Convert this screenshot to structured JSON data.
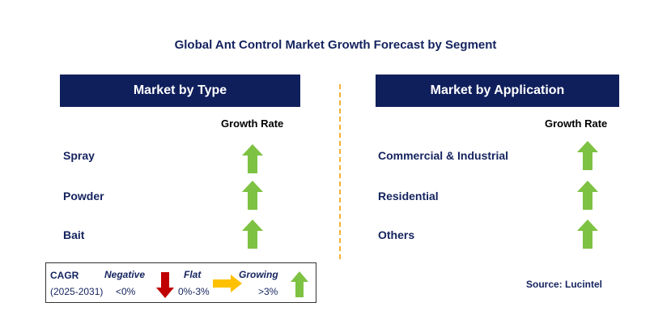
{
  "title": "Global Ant Control Market Growth Forecast by Segment",
  "left_panel": {
    "header": "Market by Type",
    "growth_label": "Growth Rate",
    "items": [
      {
        "label": "Spray",
        "trend": "growing"
      },
      {
        "label": "Powder",
        "trend": "growing"
      },
      {
        "label": "Bait",
        "trend": "growing"
      }
    ]
  },
  "right_panel": {
    "header": "Market by Application",
    "growth_label": "Growth Rate",
    "items": [
      {
        "label": "Commercial & Industrial",
        "trend": "growing"
      },
      {
        "label": "Residential",
        "trend": "growing"
      },
      {
        "label": "Others",
        "trend": "growing"
      }
    ]
  },
  "legend": {
    "cagr_label": "CAGR",
    "period": "(2025-2031)",
    "negative_label": "Negative",
    "negative_range": "<0%",
    "flat_label": "Flat",
    "flat_range": "0%-3%",
    "growing_label": "Growing",
    "growing_range": ">3%"
  },
  "source": "Source: Lucintel",
  "colors": {
    "header_bg": "#0f1f5c",
    "text": "#14235e",
    "growing_arrow": "#7dc242",
    "negative_arrow": "#c00000",
    "flat_arrow": "#ffc000",
    "divider": "#f2b035"
  },
  "icons": {
    "growing": "up-arrow-icon",
    "negative": "down-arrow-icon",
    "flat": "right-arrow-icon"
  }
}
